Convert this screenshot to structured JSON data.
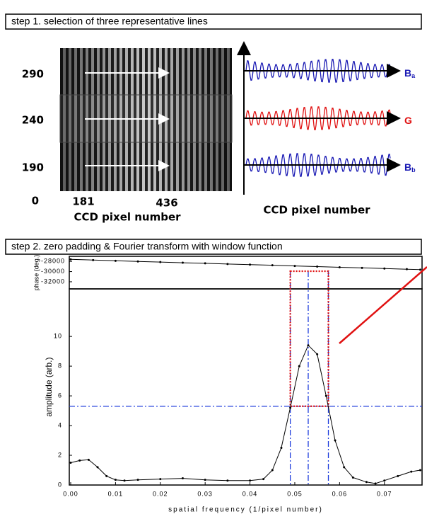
{
  "step1": {
    "header": "step 1. selection of three representative lines",
    "row_labels": [
      "290",
      "240",
      "190",
      "0"
    ],
    "column_labels": [
      "181",
      "436"
    ],
    "image_axis_label": "CCD pixel number",
    "signals": [
      {
        "label": "B",
        "subscript": "a",
        "color": "#1a1ab4"
      },
      {
        "label": "G",
        "color": "#e01010"
      },
      {
        "label": "B",
        "subscript": "b",
        "color": "#1a1ab4"
      }
    ],
    "signal_axis_label": "CCD pixel number"
  },
  "step2": {
    "header": "step 2. zero padding & Fourier transform with window function"
  },
  "chart_data": [
    {
      "type": "line",
      "y_label": "phase (deg.)",
      "x": [
        0,
        0.005,
        0.01,
        0.015,
        0.02,
        0.025,
        0.03,
        0.035,
        0.04,
        0.045,
        0.05,
        0.055,
        0.06,
        0.065,
        0.07,
        0.075,
        0.078
      ],
      "series": [
        {
          "color": "#000000",
          "values": [
            -27600,
            -27740,
            -27880,
            -28000,
            -28130,
            -28260,
            -28380,
            -28510,
            -28640,
            -28760,
            -28890,
            -29020,
            -29150,
            -29270,
            -29400,
            -29530,
            -29620
          ]
        }
      ],
      "xlim": [
        0,
        0.0784
      ],
      "ylim": [
        -33400,
        -27000
      ],
      "yticks": [
        -28000,
        -30000,
        -32000
      ]
    },
    {
      "type": "line",
      "y_label": "amplitude (arb.)",
      "x_label": "spatial frequency (1/pixel number)",
      "x": [
        0,
        0.002,
        0.004,
        0.006,
        0.008,
        0.01,
        0.012,
        0.015,
        0.02,
        0.025,
        0.03,
        0.035,
        0.04,
        0.043,
        0.045,
        0.047,
        0.049,
        0.051,
        0.053,
        0.055,
        0.057,
        0.059,
        0.061,
        0.063,
        0.066,
        0.068,
        0.07,
        0.073,
        0.076,
        0.078
      ],
      "series": [
        {
          "color": "#000000",
          "values": [
            1.5,
            1.65,
            1.7,
            1.2,
            0.6,
            0.35,
            0.3,
            0.35,
            0.4,
            0.45,
            0.35,
            0.3,
            0.3,
            0.4,
            1.0,
            2.5,
            5.2,
            8.0,
            9.4,
            8.8,
            6.0,
            3.0,
            1.2,
            0.5,
            0.2,
            0.1,
            0.3,
            0.6,
            0.9,
            1.0
          ]
        }
      ],
      "xlim": [
        0,
        0.0784
      ],
      "ylim": [
        0,
        13.2
      ],
      "yticks": [
        0,
        2,
        4,
        6,
        8,
        10
      ],
      "xticks": [
        {
          "value": 0,
          "label": "0.00"
        },
        0.01,
        0.02,
        0.03,
        0.04,
        0.05,
        0.06,
        0.07
      ],
      "window_edges": [
        0.049,
        0.0575
      ],
      "peak_x": 0.053,
      "threshold": 5.3,
      "window_color": "#e01010",
      "line_color": "#1e3cdc"
    }
  ]
}
